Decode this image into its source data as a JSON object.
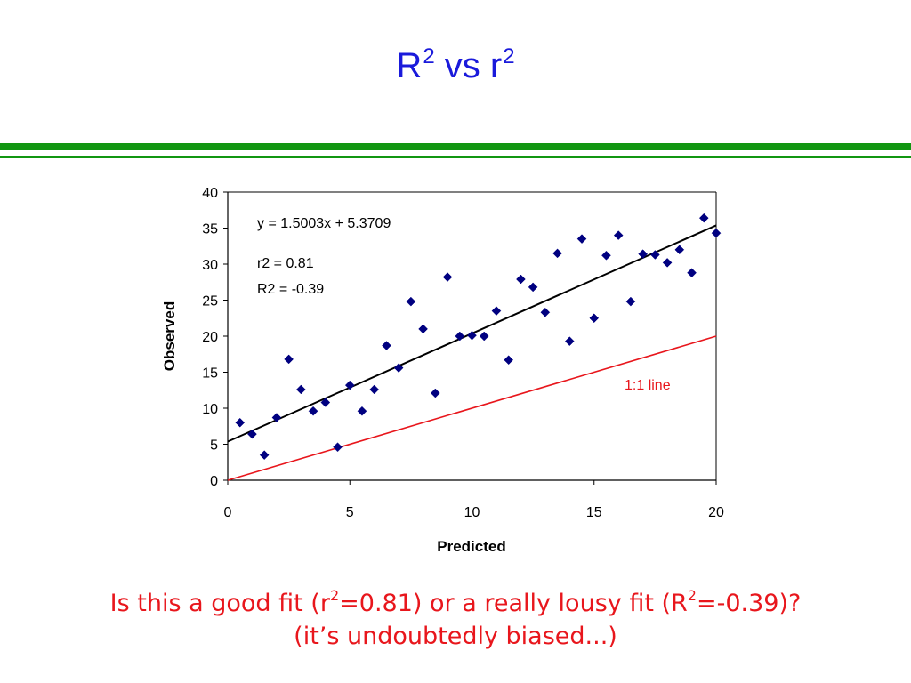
{
  "slide": {
    "title_main": "R",
    "title_sup1": "2",
    "title_mid": " vs r",
    "title_sup2": "2",
    "caption_line1": {
      "a": "Is this a good fit (r",
      "sup1": "2",
      "b": "=0.81) or a really lousy fit (R",
      "sup2": "2",
      "c": "=-0.39)?"
    },
    "caption_line2": "(it’s undoubtedly biased...)"
  },
  "colors": {
    "title": "#1a1adb",
    "rule": "#119611",
    "points": "#000080",
    "fit_line": "#000000",
    "identity_line": "#e8161c",
    "caption": "#e8161c"
  },
  "chart_data": {
    "type": "scatter",
    "xlabel": "Predicted",
    "ylabel": "Observed",
    "xlim": [
      0,
      20
    ],
    "ylim": [
      0,
      40
    ],
    "xticks": [
      0,
      5,
      10,
      15,
      20
    ],
    "yticks": [
      0,
      5,
      10,
      15,
      20,
      25,
      30,
      35,
      40
    ],
    "grid": false,
    "points": {
      "x": [
        0.5,
        1,
        1.5,
        2,
        2.5,
        3,
        3.5,
        4,
        4.5,
        5,
        5.5,
        6,
        6.5,
        7,
        7.5,
        8,
        8.5,
        9,
        9.5,
        10,
        10.5,
        11,
        11.5,
        12,
        12.5,
        13,
        13.5,
        14,
        14.5,
        15,
        15.5,
        16,
        16.5,
        17,
        17.5,
        18,
        18.5,
        19,
        19.5,
        20
      ],
      "y": [
        8.0,
        6.4,
        3.5,
        8.7,
        16.8,
        12.6,
        9.6,
        10.8,
        4.6,
        13.2,
        9.6,
        12.6,
        18.7,
        15.6,
        24.8,
        21.0,
        12.1,
        28.2,
        20.0,
        20.1,
        20.0,
        23.5,
        16.7,
        27.9,
        26.8,
        23.3,
        31.5,
        19.3,
        33.5,
        22.5,
        31.2,
        34.0,
        24.8,
        31.4,
        31.3,
        30.2,
        32.0,
        28.8,
        36.4,
        34.3
      ]
    },
    "trendline": {
      "slope": 1.5003,
      "intercept": 5.3709,
      "label": "y = 1.5003x + 5.3709"
    },
    "identity_line": {
      "slope": 1,
      "intercept": 0,
      "label": "1:1 line"
    },
    "annotations": [
      "r2 = 0.81",
      "R2 = -0.39"
    ]
  }
}
